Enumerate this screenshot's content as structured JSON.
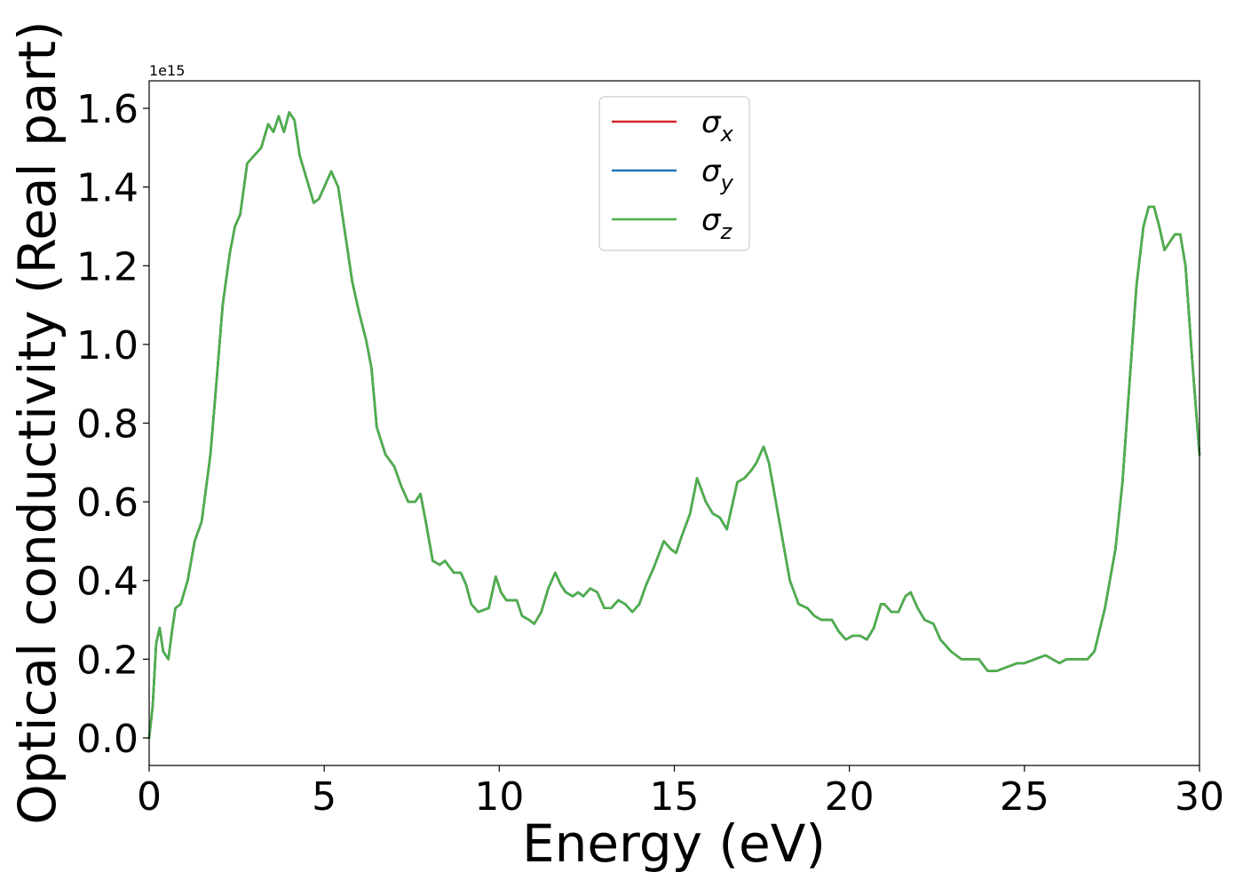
{
  "chart_data": {
    "type": "line",
    "xlabel": "Energy (eV)",
    "ylabel": "Optical conductivity (Real part)",
    "y_offset_label": "1e15",
    "y_multiplier": 1000000000000000.0,
    "xlim": [
      0,
      30
    ],
    "ylim": [
      -0.07,
      1.67
    ],
    "x_ticks": [
      0,
      5,
      10,
      15,
      20,
      25,
      30
    ],
    "x_tick_labels": [
      "0",
      "5",
      "10",
      "15",
      "20",
      "25",
      "30"
    ],
    "y_ticks": [
      0.0,
      0.2,
      0.4,
      0.6,
      0.8,
      1.0,
      1.2,
      1.4,
      1.6
    ],
    "y_tick_labels": [
      "0.0",
      "0.2",
      "0.4",
      "0.6",
      "0.8",
      "1.0",
      "1.2",
      "1.4",
      "1.6"
    ],
    "grid": false,
    "legend_position": "top-center",
    "x": [
      0.0,
      0.1,
      0.2,
      0.3,
      0.4,
      0.55,
      0.65,
      0.75,
      0.9,
      1.1,
      1.3,
      1.5,
      1.75,
      1.9,
      2.1,
      2.3,
      2.45,
      2.6,
      2.8,
      3.0,
      3.2,
      3.4,
      3.55,
      3.7,
      3.85,
      4.0,
      4.15,
      4.3,
      4.5,
      4.7,
      4.85,
      5.0,
      5.2,
      5.4,
      5.6,
      5.8,
      6.0,
      6.2,
      6.35,
      6.5,
      6.75,
      7.0,
      7.2,
      7.4,
      7.6,
      7.75,
      7.9,
      8.1,
      8.3,
      8.45,
      8.7,
      8.9,
      9.05,
      9.2,
      9.4,
      9.7,
      9.9,
      10.05,
      10.2,
      10.5,
      10.65,
      10.85,
      11.0,
      11.2,
      11.4,
      11.6,
      11.75,
      11.9,
      12.1,
      12.25,
      12.4,
      12.6,
      12.8,
      13.0,
      13.2,
      13.4,
      13.6,
      13.8,
      14.0,
      14.2,
      14.4,
      14.7,
      14.9,
      15.05,
      15.2,
      15.45,
      15.65,
      15.9,
      16.1,
      16.3,
      16.5,
      16.8,
      17.0,
      17.2,
      17.35,
      17.55,
      17.7,
      17.9,
      18.1,
      18.3,
      18.55,
      18.8,
      19.0,
      19.2,
      19.5,
      19.7,
      19.9,
      20.1,
      20.3,
      20.5,
      20.7,
      20.9,
      21.0,
      21.2,
      21.4,
      21.6,
      21.75,
      21.95,
      22.15,
      22.4,
      22.6,
      22.9,
      23.2,
      23.45,
      23.7,
      23.95,
      24.2,
      24.5,
      24.8,
      25.0,
      25.3,
      25.6,
      25.8,
      26.0,
      26.2,
      26.5,
      26.8,
      27.0,
      27.3,
      27.6,
      27.8,
      28.0,
      28.2,
      28.4,
      28.55,
      28.7,
      28.85,
      29.0,
      29.15,
      29.3,
      29.45,
      29.6,
      29.8,
      30.0
    ],
    "series": [
      {
        "name": "σx",
        "color": "#d62728",
        "values": [
          0.0,
          0.08,
          0.24,
          0.28,
          0.22,
          0.2,
          0.27,
          0.33,
          0.34,
          0.4,
          0.5,
          0.55,
          0.72,
          0.88,
          1.1,
          1.23,
          1.3,
          1.33,
          1.46,
          1.48,
          1.5,
          1.56,
          1.54,
          1.58,
          1.54,
          1.59,
          1.57,
          1.48,
          1.42,
          1.36,
          1.37,
          1.4,
          1.44,
          1.4,
          1.28,
          1.16,
          1.08,
          1.01,
          0.94,
          0.79,
          0.72,
          0.69,
          0.64,
          0.6,
          0.6,
          0.62,
          0.55,
          0.45,
          0.44,
          0.45,
          0.42,
          0.42,
          0.39,
          0.34,
          0.32,
          0.33,
          0.41,
          0.37,
          0.35,
          0.35,
          0.31,
          0.3,
          0.29,
          0.32,
          0.38,
          0.42,
          0.39,
          0.37,
          0.36,
          0.37,
          0.36,
          0.38,
          0.37,
          0.33,
          0.33,
          0.35,
          0.34,
          0.32,
          0.34,
          0.39,
          0.43,
          0.5,
          0.48,
          0.47,
          0.51,
          0.57,
          0.66,
          0.6,
          0.57,
          0.56,
          0.53,
          0.65,
          0.66,
          0.68,
          0.7,
          0.74,
          0.7,
          0.6,
          0.5,
          0.4,
          0.34,
          0.33,
          0.31,
          0.3,
          0.3,
          0.27,
          0.25,
          0.26,
          0.26,
          0.25,
          0.28,
          0.34,
          0.34,
          0.32,
          0.32,
          0.36,
          0.37,
          0.33,
          0.3,
          0.29,
          0.25,
          0.22,
          0.2,
          0.2,
          0.2,
          0.17,
          0.17,
          0.18,
          0.19,
          0.19,
          0.2,
          0.21,
          0.2,
          0.19,
          0.2,
          0.2,
          0.2,
          0.22,
          0.33,
          0.48,
          0.65,
          0.9,
          1.15,
          1.3,
          1.35,
          1.35,
          1.3,
          1.24,
          1.26,
          1.28,
          1.28,
          1.2,
          0.95,
          0.72
        ]
      },
      {
        "name": "σy",
        "color": "#1f77b4",
        "values": [
          0.0,
          0.08,
          0.24,
          0.28,
          0.22,
          0.2,
          0.27,
          0.33,
          0.34,
          0.4,
          0.5,
          0.55,
          0.72,
          0.88,
          1.1,
          1.23,
          1.3,
          1.33,
          1.46,
          1.48,
          1.5,
          1.56,
          1.54,
          1.58,
          1.54,
          1.59,
          1.57,
          1.48,
          1.42,
          1.36,
          1.37,
          1.4,
          1.44,
          1.4,
          1.28,
          1.16,
          1.08,
          1.01,
          0.94,
          0.79,
          0.72,
          0.69,
          0.64,
          0.6,
          0.6,
          0.62,
          0.55,
          0.45,
          0.44,
          0.45,
          0.42,
          0.42,
          0.39,
          0.34,
          0.32,
          0.33,
          0.41,
          0.37,
          0.35,
          0.35,
          0.31,
          0.3,
          0.29,
          0.32,
          0.38,
          0.42,
          0.39,
          0.37,
          0.36,
          0.37,
          0.36,
          0.38,
          0.37,
          0.33,
          0.33,
          0.35,
          0.34,
          0.32,
          0.34,
          0.39,
          0.43,
          0.5,
          0.48,
          0.47,
          0.51,
          0.57,
          0.66,
          0.6,
          0.57,
          0.56,
          0.53,
          0.65,
          0.66,
          0.68,
          0.7,
          0.74,
          0.7,
          0.6,
          0.5,
          0.4,
          0.34,
          0.33,
          0.31,
          0.3,
          0.3,
          0.27,
          0.25,
          0.26,
          0.26,
          0.25,
          0.28,
          0.34,
          0.34,
          0.32,
          0.32,
          0.36,
          0.37,
          0.33,
          0.3,
          0.29,
          0.25,
          0.22,
          0.2,
          0.2,
          0.2,
          0.17,
          0.17,
          0.18,
          0.19,
          0.19,
          0.2,
          0.21,
          0.2,
          0.19,
          0.2,
          0.2,
          0.2,
          0.22,
          0.33,
          0.48,
          0.65,
          0.9,
          1.15,
          1.3,
          1.35,
          1.35,
          1.3,
          1.24,
          1.26,
          1.28,
          1.28,
          1.2,
          0.95,
          0.72
        ]
      },
      {
        "name": "σz",
        "color": "#4daf4a",
        "values": [
          0.0,
          0.08,
          0.24,
          0.28,
          0.22,
          0.2,
          0.27,
          0.33,
          0.34,
          0.4,
          0.5,
          0.55,
          0.72,
          0.88,
          1.1,
          1.23,
          1.3,
          1.33,
          1.46,
          1.48,
          1.5,
          1.56,
          1.54,
          1.58,
          1.54,
          1.59,
          1.57,
          1.48,
          1.42,
          1.36,
          1.37,
          1.4,
          1.44,
          1.4,
          1.28,
          1.16,
          1.08,
          1.01,
          0.94,
          0.79,
          0.72,
          0.69,
          0.64,
          0.6,
          0.6,
          0.62,
          0.55,
          0.45,
          0.44,
          0.45,
          0.42,
          0.42,
          0.39,
          0.34,
          0.32,
          0.33,
          0.41,
          0.37,
          0.35,
          0.35,
          0.31,
          0.3,
          0.29,
          0.32,
          0.38,
          0.42,
          0.39,
          0.37,
          0.36,
          0.37,
          0.36,
          0.38,
          0.37,
          0.33,
          0.33,
          0.35,
          0.34,
          0.32,
          0.34,
          0.39,
          0.43,
          0.5,
          0.48,
          0.47,
          0.51,
          0.57,
          0.66,
          0.6,
          0.57,
          0.56,
          0.53,
          0.65,
          0.66,
          0.68,
          0.7,
          0.74,
          0.7,
          0.6,
          0.5,
          0.4,
          0.34,
          0.33,
          0.31,
          0.3,
          0.3,
          0.27,
          0.25,
          0.26,
          0.26,
          0.25,
          0.28,
          0.34,
          0.34,
          0.32,
          0.32,
          0.36,
          0.37,
          0.33,
          0.3,
          0.29,
          0.25,
          0.22,
          0.2,
          0.2,
          0.2,
          0.17,
          0.17,
          0.18,
          0.19,
          0.19,
          0.2,
          0.21,
          0.2,
          0.19,
          0.2,
          0.2,
          0.2,
          0.22,
          0.33,
          0.48,
          0.65,
          0.9,
          1.15,
          1.3,
          1.35,
          1.35,
          1.3,
          1.24,
          1.26,
          1.28,
          1.28,
          1.2,
          0.95,
          0.72
        ]
      }
    ],
    "legend": [
      {
        "symbol": "σ",
        "sub": "x",
        "color": "#d62728"
      },
      {
        "symbol": "σ",
        "sub": "y",
        "color": "#1f77b4"
      },
      {
        "symbol": "σ",
        "sub": "z",
        "color": "#4daf4a"
      }
    ]
  }
}
